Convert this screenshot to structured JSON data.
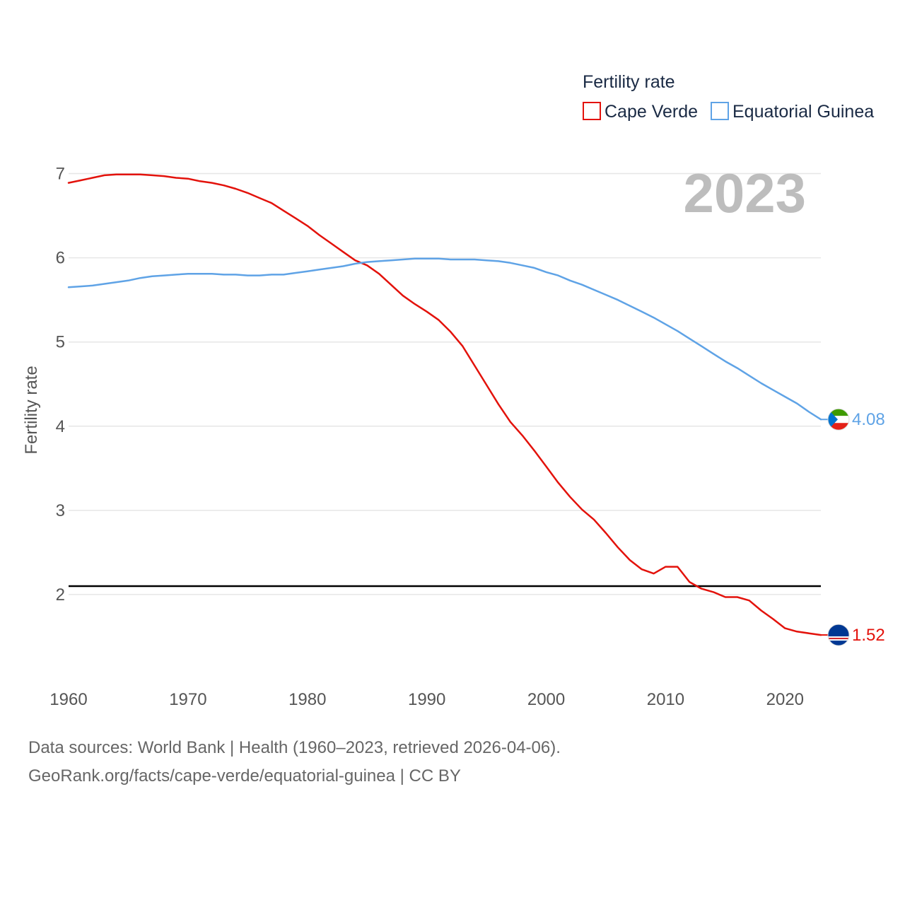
{
  "chart_data": {
    "type": "line",
    "title": "",
    "year_label": "2023",
    "xlabel": "",
    "ylabel": "Fertility rate",
    "xlim": [
      1960,
      2023
    ],
    "ylim": [
      1.0,
      7.5
    ],
    "xticks": [
      1960,
      1970,
      1980,
      1990,
      2000,
      2010,
      2020
    ],
    "yticks": [
      2,
      3,
      4,
      5,
      6,
      7
    ],
    "grid": true,
    "reference_line": {
      "value": 2.1,
      "color": "#000000"
    },
    "legend": {
      "title": "Fertility rate",
      "position": "top-right",
      "entries": [
        {
          "name": "Cape Verde",
          "color": "#e3120b"
        },
        {
          "name": "Equatorial Guinea",
          "color": "#5fa3e6"
        }
      ]
    },
    "x": [
      1960,
      1961,
      1962,
      1963,
      1964,
      1965,
      1966,
      1967,
      1968,
      1969,
      1970,
      1971,
      1972,
      1973,
      1974,
      1975,
      1976,
      1977,
      1978,
      1979,
      1980,
      1981,
      1982,
      1983,
      1984,
      1985,
      1986,
      1987,
      1988,
      1989,
      1990,
      1991,
      1992,
      1993,
      1994,
      1995,
      1996,
      1997,
      1998,
      1999,
      2000,
      2001,
      2002,
      2003,
      2004,
      2005,
      2006,
      2007,
      2008,
      2009,
      2010,
      2011,
      2012,
      2013,
      2014,
      2015,
      2016,
      2017,
      2018,
      2019,
      2020,
      2021,
      2022,
      2023
    ],
    "series": [
      {
        "name": "Cape Verde",
        "color": "#e3120b",
        "end_label": "1.52",
        "values": [
          6.89,
          6.92,
          6.95,
          6.98,
          6.99,
          6.99,
          6.99,
          6.98,
          6.97,
          6.95,
          6.94,
          6.91,
          6.89,
          6.86,
          6.82,
          6.77,
          6.71,
          6.65,
          6.56,
          6.47,
          6.38,
          6.27,
          6.17,
          6.07,
          5.97,
          5.91,
          5.81,
          5.68,
          5.55,
          5.45,
          5.36,
          5.26,
          5.12,
          4.95,
          4.72,
          4.49,
          4.26,
          4.05,
          3.89,
          3.71,
          3.52,
          3.33,
          3.16,
          3.01,
          2.89,
          2.73,
          2.56,
          2.41,
          2.3,
          2.25,
          2.33,
          2.33,
          2.15,
          2.07,
          2.03,
          1.97,
          1.97,
          1.93,
          1.81,
          1.71,
          1.6,
          1.56,
          1.54,
          1.52
        ]
      },
      {
        "name": "Equatorial Guinea",
        "color": "#5fa3e6",
        "end_label": "4.08",
        "values": [
          5.65,
          5.66,
          5.67,
          5.69,
          5.71,
          5.73,
          5.76,
          5.78,
          5.79,
          5.8,
          5.81,
          5.81,
          5.81,
          5.8,
          5.8,
          5.79,
          5.79,
          5.8,
          5.8,
          5.82,
          5.84,
          5.86,
          5.88,
          5.9,
          5.93,
          5.95,
          5.96,
          5.97,
          5.98,
          5.99,
          5.99,
          5.99,
          5.98,
          5.98,
          5.98,
          5.97,
          5.96,
          5.94,
          5.91,
          5.88,
          5.83,
          5.79,
          5.73,
          5.68,
          5.62,
          5.56,
          5.5,
          5.43,
          5.36,
          5.29,
          5.21,
          5.13,
          5.04,
          4.95,
          4.86,
          4.77,
          4.69,
          4.6,
          4.51,
          4.43,
          4.35,
          4.27,
          4.17,
          4.08
        ]
      }
    ]
  },
  "footer": {
    "source_line": "Data sources: World Bank | Health (1960–2023, retrieved 2026-04-06).",
    "url_line": "GeoRank.org/facts/cape-verde/equatorial-guinea | CC BY"
  }
}
